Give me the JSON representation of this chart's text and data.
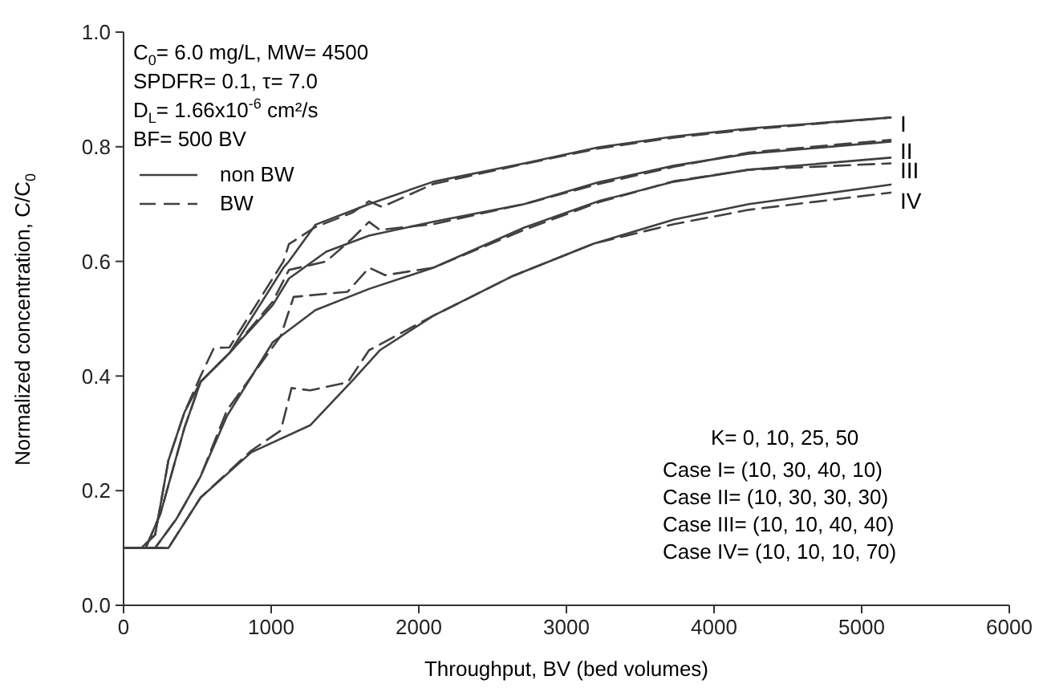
{
  "chart_data": {
    "type": "line",
    "xlabel": "Throughput, BV (bed volumes)",
    "ylabel": "Normalized concentration, C/C$_{0}$",
    "xlim": [
      0,
      6000
    ],
    "xticks": [
      0,
      1000,
      2000,
      3000,
      4000,
      5000,
      6000
    ],
    "ylim": [
      0,
      1.0
    ],
    "yticks": [
      {
        "value": 0,
        "label": "0.0"
      },
      0.2,
      0.4,
      0.6,
      0.8,
      {
        "value": 1.0,
        "label": "1.0"
      }
    ],
    "grid": false,
    "legend": "top left",
    "marker": "none",
    "series": [
      {
        "name": "non BW",
        "color": "#404040",
        "line_style": "solid",
        "x": [
          0,
          120,
          214,
          304,
          413,
          522,
          717,
          1083,
          1120,
          1300,
          1663,
          2098,
          2714,
          3217,
          3728,
          4236,
          5196
        ],
        "values": [
          0.1,
          0.1,
          0.123,
          0.253,
          0.337,
          0.39,
          0.44,
          0.589,
          0.6,
          0.664,
          0.7,
          0.739,
          0.771,
          0.799,
          0.818,
          0.832,
          0.851
        ]
      },
      {
        "name": "BW",
        "color": "#404040",
        "line_style": "dashed",
        "x": [
          0,
          120,
          214,
          304,
          413,
          522,
          612,
          717,
          1083,
          1120,
          1300,
          1550,
          1663,
          1750,
          2098,
          2714,
          3217,
          3728,
          4236,
          5196
        ],
        "values": [
          0.1,
          0.1,
          0.123,
          0.253,
          0.337,
          0.4,
          0.449,
          0.45,
          0.6,
          0.63,
          0.66,
          0.685,
          0.705,
          0.695,
          0.735,
          0.77,
          0.797,
          0.816,
          0.83,
          0.851
        ]
      },
      {
        "color": "#404040",
        "line_style": "solid",
        "x": [
          0,
          150,
          250,
          413,
          522,
          717,
          1011,
          1120,
          1373,
          1663,
          2098,
          2714,
          3217,
          3728,
          4236,
          5196
        ],
        "values": [
          0.1,
          0.1,
          0.16,
          0.31,
          0.39,
          0.44,
          0.524,
          0.57,
          0.617,
          0.645,
          0.669,
          0.7,
          0.738,
          0.767,
          0.788,
          0.809
        ]
      },
      {
        "color": "#404040",
        "line_style": "dashed",
        "x": [
          0,
          150,
          250,
          413,
          522,
          717,
          1011,
          1120,
          1373,
          1550,
          1663,
          1736,
          2098,
          2714,
          3217,
          3728,
          4236,
          5196
        ],
        "values": [
          0.1,
          0.1,
          0.16,
          0.31,
          0.39,
          0.44,
          0.53,
          0.585,
          0.6,
          0.64,
          0.669,
          0.655,
          0.665,
          0.7,
          0.735,
          0.765,
          0.79,
          0.812
        ]
      },
      {
        "color": "#404040",
        "line_style": "solid",
        "x": [
          0,
          214,
          359,
          522,
          700,
          1011,
          1300,
          1663,
          2098,
          2714,
          3217,
          3728,
          4236,
          5196
        ],
        "values": [
          0.1,
          0.1,
          0.151,
          0.225,
          0.33,
          0.459,
          0.515,
          0.552,
          0.589,
          0.659,
          0.705,
          0.739,
          0.76,
          0.781
        ]
      },
      {
        "color": "#404040",
        "line_style": "dashed",
        "x": [
          0,
          214,
          359,
          522,
          700,
          1065,
          1152,
          1518,
          1663,
          1772,
          2098,
          2714,
          3217,
          3728,
          4236,
          5196
        ],
        "values": [
          0.1,
          0.1,
          0.151,
          0.225,
          0.34,
          0.47,
          0.538,
          0.547,
          0.589,
          0.576,
          0.589,
          0.655,
          0.703,
          0.74,
          0.76,
          0.771
        ]
      },
      {
        "color": "#404040",
        "line_style": "solid",
        "x": [
          0,
          304,
          522,
          866,
          1264,
          1554,
          1736,
          2098,
          2641,
          3185,
          3728,
          4236,
          5196
        ],
        "values": [
          0.1,
          0.1,
          0.188,
          0.267,
          0.314,
          0.393,
          0.445,
          0.505,
          0.575,
          0.631,
          0.673,
          0.7,
          0.734
        ]
      },
      {
        "color": "#404040",
        "line_style": "dashed",
        "x": [
          0,
          304,
          522,
          866,
          1065,
          1138,
          1264,
          1518,
          1663,
          2098,
          2641,
          3185,
          3728,
          4236,
          5196
        ],
        "values": [
          0.1,
          0.1,
          0.188,
          0.27,
          0.305,
          0.379,
          0.375,
          0.389,
          0.445,
          0.505,
          0.575,
          0.631,
          0.665,
          0.69,
          0.72
        ]
      }
    ],
    "annotations": [
      "C$_{0}$= 6.0 mg/L, MW= 4500",
      "SPDFR= 0.1, τ= 7.0",
      "D$_{L}$= 1.66x10$^{-6}$ cm²/s",
      "BF= 500 BV",
      "K=  0, 10, 25, 50",
      "Case I= (10, 30, 40, 10)",
      "Case II= (10, 30, 30, 30)",
      "Case III= (10, 10, 40, 40)",
      "Case IV= (10, 10, 10, 70)",
      "I",
      "II",
      "III",
      "IV"
    ]
  }
}
